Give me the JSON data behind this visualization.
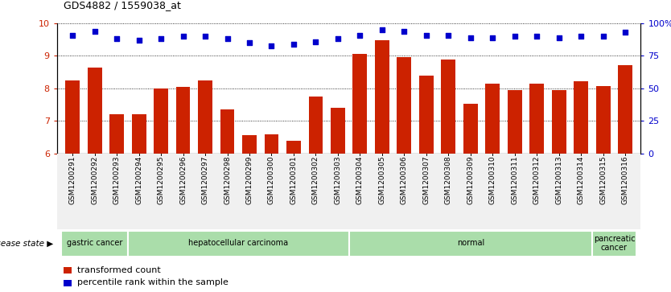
{
  "title": "GDS4882 / 1559038_at",
  "samples": [
    "GSM1200291",
    "GSM1200292",
    "GSM1200293",
    "GSM1200294",
    "GSM1200295",
    "GSM1200296",
    "GSM1200297",
    "GSM1200298",
    "GSM1200299",
    "GSM1200300",
    "GSM1200301",
    "GSM1200302",
    "GSM1200303",
    "GSM1200304",
    "GSM1200305",
    "GSM1200306",
    "GSM1200307",
    "GSM1200308",
    "GSM1200309",
    "GSM1200310",
    "GSM1200311",
    "GSM1200312",
    "GSM1200313",
    "GSM1200314",
    "GSM1200315",
    "GSM1200316"
  ],
  "bar_values": [
    8.25,
    8.65,
    7.2,
    7.2,
    8.0,
    8.05,
    8.25,
    7.35,
    6.55,
    6.58,
    6.38,
    7.75,
    7.4,
    9.05,
    9.48,
    8.95,
    8.38,
    8.88,
    7.52,
    8.15,
    7.95,
    8.15,
    7.95,
    8.22,
    8.08,
    8.72
  ],
  "percentile_values": [
    91,
    94,
    88,
    87,
    88,
    90,
    90,
    88,
    85,
    83,
    84,
    86,
    88,
    91,
    95,
    94,
    91,
    91,
    89,
    89,
    90,
    90,
    89,
    90,
    90,
    93
  ],
  "bar_color": "#cc2200",
  "dot_color": "#0000cc",
  "ylim_left": [
    6,
    10
  ],
  "ylim_right": [
    0,
    100
  ],
  "yticks_left": [
    6,
    7,
    8,
    9,
    10
  ],
  "yticks_right": [
    0,
    25,
    50,
    75,
    100
  ],
  "ytick_labels_right": [
    "0",
    "25",
    "50",
    "75",
    "100%"
  ],
  "disease_groups": [
    {
      "label": "gastric cancer",
      "start": 0,
      "end": 3
    },
    {
      "label": "hepatocellular carcinoma",
      "start": 3,
      "end": 13
    },
    {
      "label": "normal",
      "start": 13,
      "end": 24
    },
    {
      "label": "pancreatic\ncancer",
      "start": 24,
      "end": 26
    }
  ],
  "legend_bar_label": "transformed count",
  "legend_dot_label": "percentile rank within the sample",
  "disease_state_label": "disease state",
  "group_color": "#aaddaa",
  "group_border_color": "white",
  "bg_color": "#f0f0f0"
}
